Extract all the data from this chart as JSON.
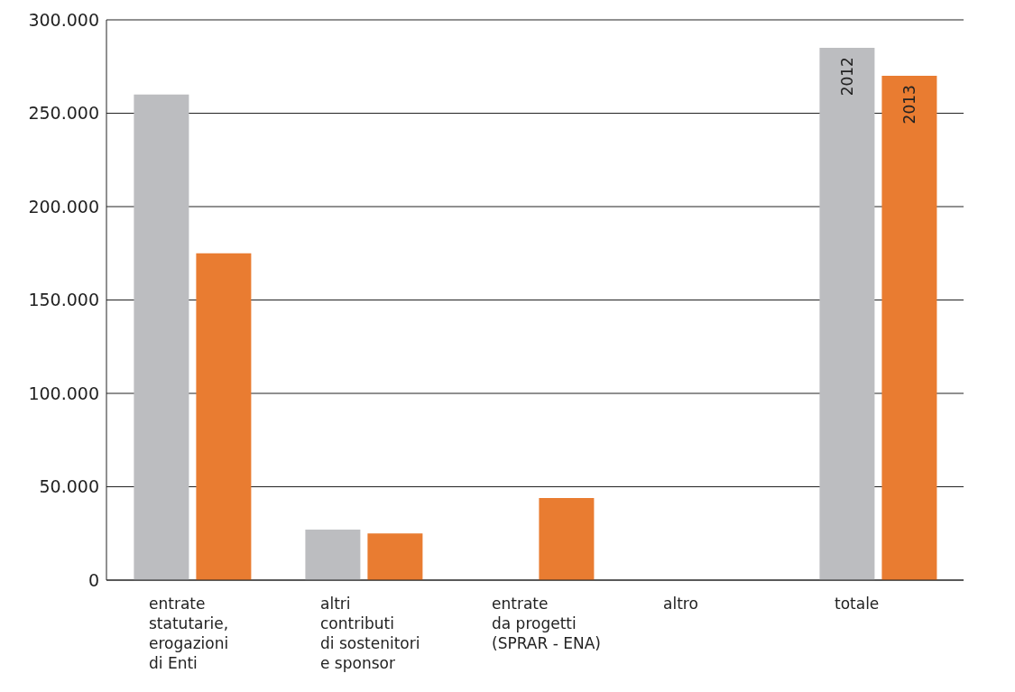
{
  "chart_data": {
    "type": "bar",
    "categories": [
      "entrate\nstatutarie,\nerogazioni\ndi Enti",
      "altri\ncontributi\ndi sostenitori\ne sponsor",
      "entrate\nda progetti\n(SPRAR - ENA)",
      "altro",
      "totale"
    ],
    "series": [
      {
        "name": "2012",
        "color": "#bcbdc0",
        "values": [
          260000,
          27000,
          null,
          null,
          285000
        ]
      },
      {
        "name": "2013",
        "color": "#e97c31",
        "values": [
          175000,
          25000,
          44000,
          null,
          270000
        ]
      }
    ],
    "ylim": [
      0,
      300000
    ],
    "yticks": [
      {
        "value": 0,
        "label": "0"
      },
      {
        "value": 50000,
        "label": "50.000"
      },
      {
        "value": 100000,
        "label": "100.000"
      },
      {
        "value": 150000,
        "label": "150.000"
      },
      {
        "value": 200000,
        "label": "200.000"
      },
      {
        "value": 250000,
        "label": "250.000"
      },
      {
        "value": 300000,
        "label": "300.000"
      }
    ],
    "grid": "y",
    "legend": false
  }
}
